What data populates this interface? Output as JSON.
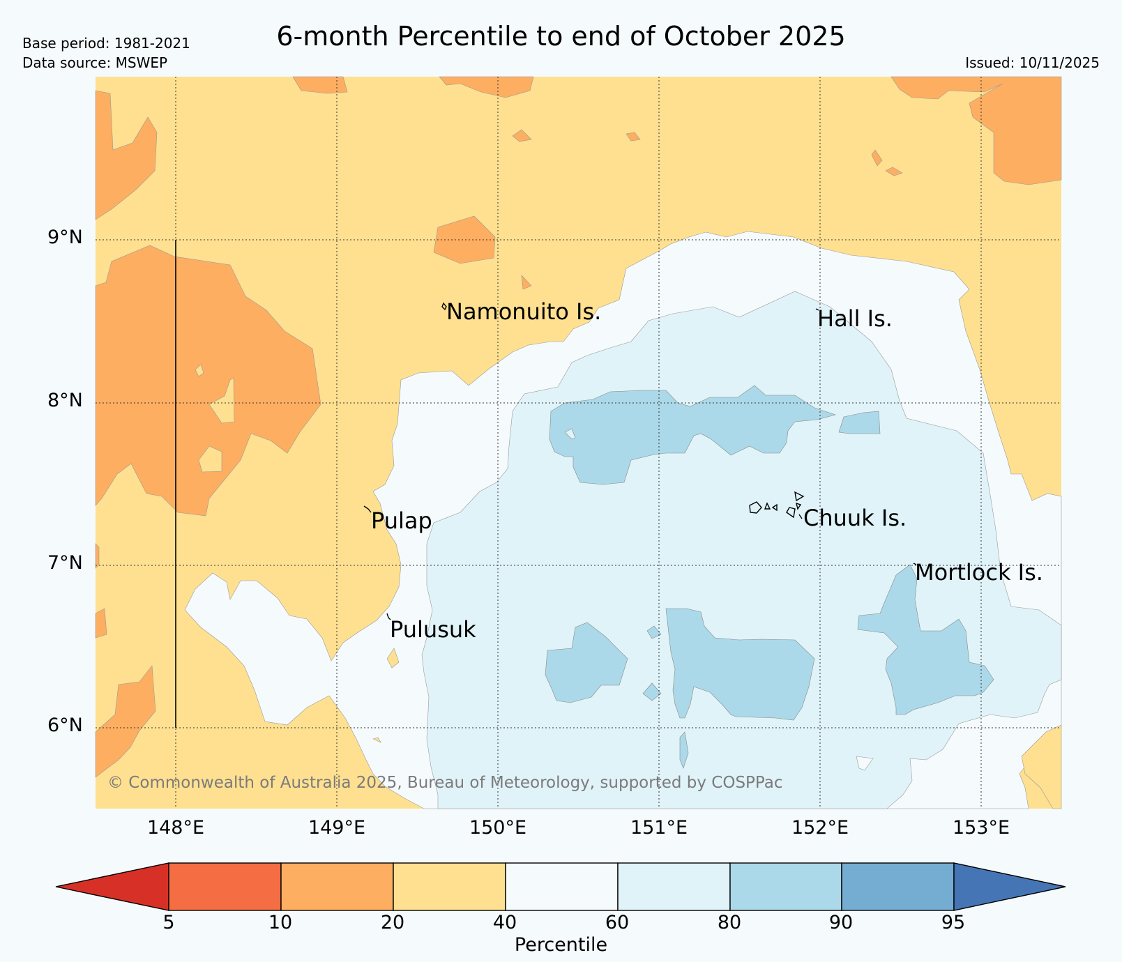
{
  "header": {
    "title": "6-month Percentile to end of October 2025",
    "base_period": "Base period: 1981-2021",
    "data_source": "Data source: MSWEP",
    "issued": "Issued: 10/11/2025"
  },
  "map": {
    "lat_labels": [
      "9°N",
      "8°N",
      "7°N",
      "6°N"
    ],
    "lon_labels": [
      "148°E",
      "149°E",
      "150°E",
      "151°E",
      "152°E",
      "153°E"
    ],
    "places": [
      "Namonuito Is.",
      "Hall Is.",
      "Pulap",
      "Chuuk Is.",
      "Mortlock Is.",
      "Pulusuk"
    ],
    "copyright": "© Commonwealth of Australia 2025, Bureau of Meteorology, supported by COSPPac"
  },
  "colorbar": {
    "label": "Percentile",
    "ticks": [
      "5",
      "10",
      "20",
      "40",
      "60",
      "80",
      "90",
      "95"
    ],
    "colors": {
      "below5": "#d73027",
      "p5_10": "#f46d43",
      "p10_20": "#fdae61",
      "p20_40": "#fee090",
      "p40_60": "#f5fafd",
      "p60_80": "#e0f3f8",
      "p80_90": "#abd9e9",
      "p90_95": "#74add1",
      "above95": "#4575b4"
    }
  }
}
